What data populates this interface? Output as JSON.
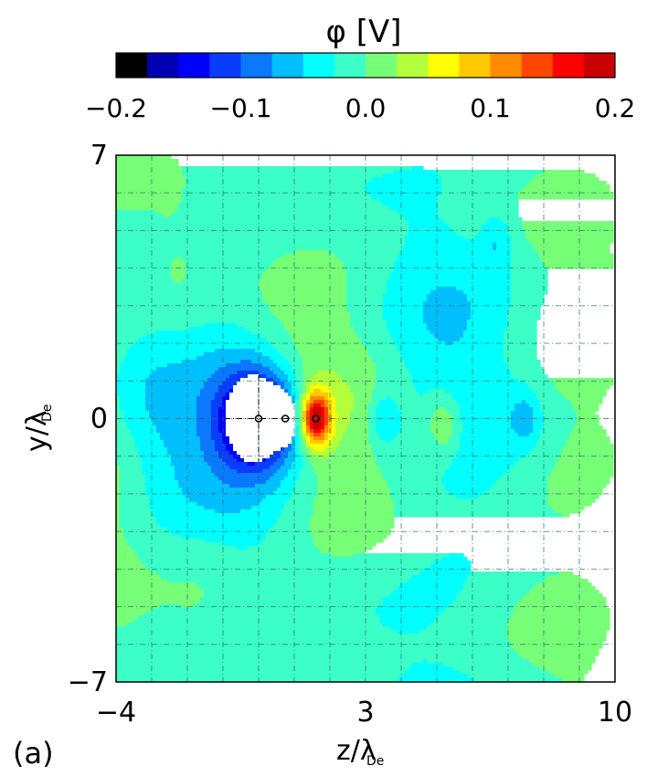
{
  "panel_label": "(a)",
  "chart_data": {
    "type": "heatmap",
    "colorbar": {
      "title": "φ [V]",
      "range": [
        -0.2,
        0.2
      ],
      "tick_values": [
        -0.2,
        -0.1,
        0.0,
        0.1,
        0.2
      ],
      "tick_labels": [
        "−0.2",
        "−0.1",
        "0.0",
        "0.1",
        "0.2"
      ],
      "colors": [
        "#000000",
        "#0000b4",
        "#0000ff",
        "#0a3cff",
        "#0a78ff",
        "#00bfff",
        "#00ffff",
        "#3cffc8",
        "#78ff78",
        "#b4ff3c",
        "#ffff00",
        "#ffc800",
        "#ff8c00",
        "#ff4600",
        "#ff0000",
        "#c80000"
      ]
    },
    "xlabel": "z/λ_De",
    "ylabel": "y/λ_De",
    "xlim": [
      -4,
      10
    ],
    "ylim": [
      -7,
      7
    ],
    "x_ticks": [
      -4,
      3,
      10
    ],
    "x_tick_labels": [
      "−4",
      "3",
      "10"
    ],
    "y_ticks": [
      -7,
      0,
      7
    ],
    "y_tick_labels": [
      "−7",
      "0",
      "7"
    ],
    "grid": true,
    "background_level": 0.0,
    "features": [
      {
        "kind": "hole",
        "z": 0,
        "y": 0,
        "value": null
      },
      {
        "kind": "well",
        "z": 0,
        "y": 0,
        "value": -0.2
      },
      {
        "kind": "peak",
        "z": 1.6,
        "y": 0,
        "value": 0.2
      },
      {
        "kind": "well",
        "z": 3.5,
        "y": 0,
        "value": -0.045
      },
      {
        "kind": "peak",
        "z": 5.2,
        "y": -0.2,
        "value": 0.06
      },
      {
        "kind": "well",
        "z": 7.5,
        "y": 0,
        "value": -0.04
      },
      {
        "kind": "well",
        "z": 6.7,
        "y": 4.7,
        "value": -0.035
      }
    ],
    "markers": [
      {
        "z": 0.0,
        "y": 0
      },
      {
        "z": 0.75,
        "y": 0
      },
      {
        "z": 1.6,
        "y": 0
      }
    ]
  }
}
